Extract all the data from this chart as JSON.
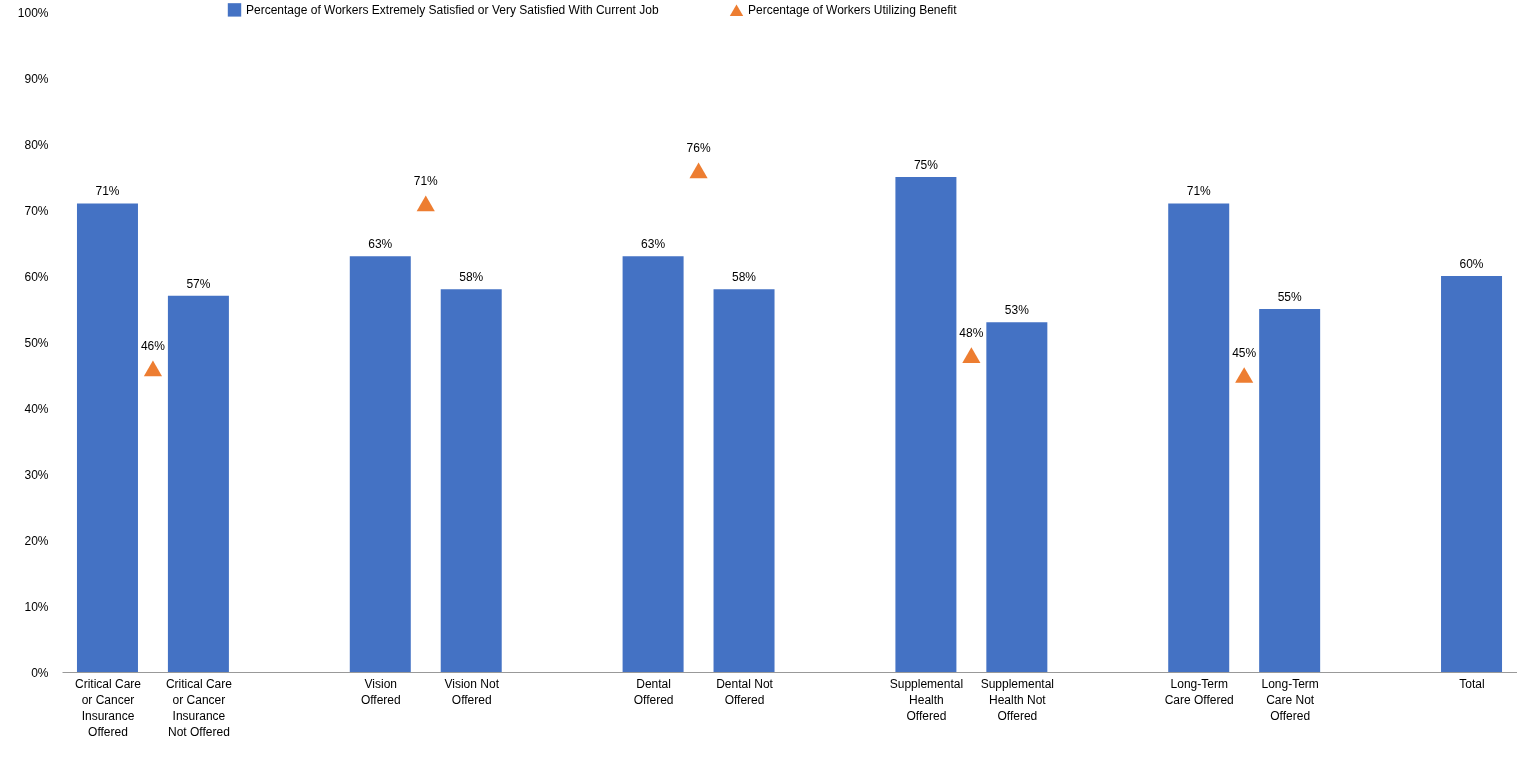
{
  "chart_data": {
    "type": "bar",
    "categories": [
      "Critical Care or Cancer Insurance Offered",
      null,
      "Critical Care or Cancer Insurance Not Offered",
      null,
      null,
      null,
      "Vision Offered",
      null,
      "Vision Not Offered",
      null,
      null,
      null,
      "Dental Offered",
      null,
      "Dental Not Offered",
      null,
      null,
      null,
      "Supplemental Health Offered",
      null,
      "Supplemental Health Not Offered",
      null,
      null,
      null,
      "Long-Term Care Offered",
      null,
      "Long-Term Care Not Offered",
      null,
      null,
      null,
      "Total"
    ],
    "series": [
      {
        "name": "Percentage of Workers Extremely Satisfied or Very Satisfied With Current Job",
        "color": "#4472c4",
        "values": [
          71,
          null,
          57,
          null,
          null,
          null,
          63,
          null,
          58,
          null,
          null,
          null,
          63,
          null,
          58,
          null,
          null,
          null,
          75,
          null,
          53,
          null,
          null,
          null,
          71,
          null,
          55,
          null,
          null,
          null,
          60
        ],
        "value_labels": [
          "71%",
          null,
          "57%",
          null,
          null,
          null,
          "63%",
          null,
          "58%",
          null,
          null,
          null,
          "63%",
          null,
          "58%",
          null,
          null,
          null,
          "75%",
          null,
          "53%",
          null,
          null,
          null,
          "71%",
          null,
          "55%",
          null,
          null,
          null,
          "60%"
        ]
      },
      {
        "name": "Percentage of Workers Utilizing Benefit",
        "type": "scatter",
        "marker": "triangle",
        "color": "#ed7d31",
        "values": [
          null,
          46,
          null,
          null,
          null,
          null,
          null,
          71,
          null,
          null,
          null,
          null,
          null,
          76,
          null,
          null,
          null,
          null,
          null,
          48,
          null,
          null,
          null,
          null,
          null,
          45,
          null,
          null,
          null,
          null,
          null
        ],
        "value_labels": [
          null,
          "46%",
          null,
          null,
          null,
          null,
          null,
          "71%",
          null,
          null,
          null,
          null,
          null,
          "76%",
          null,
          null,
          null,
          null,
          null,
          "48%",
          null,
          null,
          null,
          null,
          null,
          "45%",
          null,
          null,
          null,
          null,
          null
        ]
      }
    ],
    "ylim": [
      0,
      100
    ],
    "yticks": [
      {
        "value": 0,
        "label": "0%"
      },
      {
        "value": 10,
        "label": "10%"
      },
      {
        "value": 20,
        "label": "20%"
      },
      {
        "value": 30,
        "label": "30%"
      },
      {
        "value": 40,
        "label": "40%"
      },
      {
        "value": 50,
        "label": "50%"
      },
      {
        "value": 60,
        "label": "60%"
      },
      {
        "value": 70,
        "label": "70%"
      },
      {
        "value": 80,
        "label": "80%"
      },
      {
        "value": 90,
        "label": "90%"
      },
      {
        "value": 100,
        "label": "100%"
      }
    ],
    "legend": "top"
  }
}
